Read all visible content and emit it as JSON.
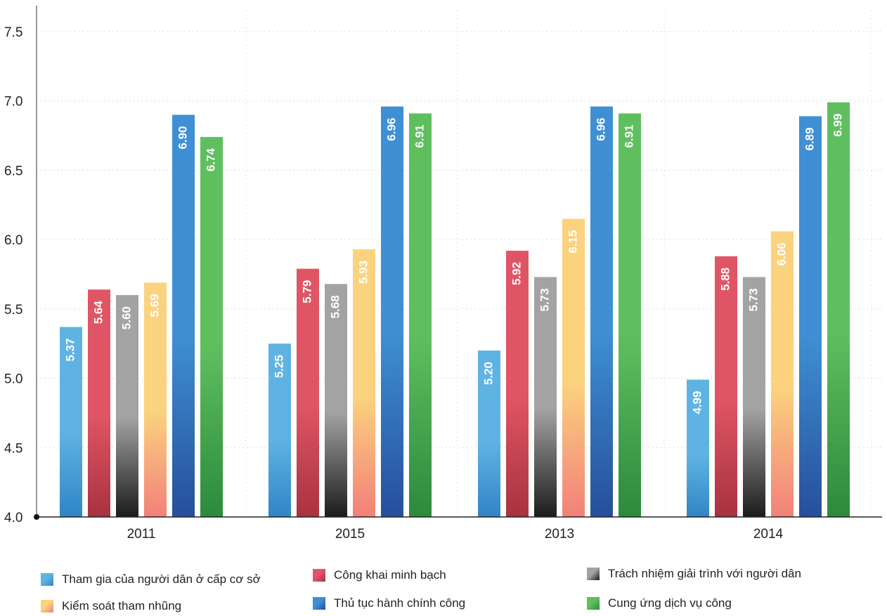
{
  "chart_data": {
    "type": "bar",
    "categories": [
      "2011",
      "2015",
      "2013",
      "2014"
    ],
    "series": [
      {
        "name": "Tham gia của người dân ở cấp cơ sở",
        "values": [
          5.37,
          5.25,
          5.2,
          4.99
        ],
        "labels": [
          "5.37",
          "5.25",
          "5.20",
          "4.99"
        ],
        "color": "#5fb3e3",
        "color_dark": "#2f86c4"
      },
      {
        "name": "Công khai minh bạch",
        "values": [
          5.64,
          5.79,
          5.92,
          5.88
        ],
        "labels": [
          "5.64",
          "5.79",
          "5.92",
          "5.88"
        ],
        "color": "#e05565",
        "color_dark": "#a8323f"
      },
      {
        "name": "Trách nhiệm giải trình với người dân",
        "values": [
          5.6,
          5.68,
          5.73,
          5.73
        ],
        "labels": [
          "5.60",
          "5.68",
          "5.73",
          "5.73"
        ],
        "color": "#a3a3a3",
        "color_dark": "#1c1c1c"
      },
      {
        "name": "Kiểm soát tham nhũng",
        "values": [
          5.69,
          5.93,
          6.15,
          6.06
        ],
        "labels": [
          "5.69",
          "5.93",
          "6.15",
          "6.06"
        ],
        "color": "#fbd27e",
        "color_dark": "#f2807a"
      },
      {
        "name": "Thủ tục hành chính công",
        "values": [
          6.9,
          6.96,
          6.96,
          6.89
        ],
        "labels": [
          "6.90",
          "6.96",
          "6.96",
          "6.89"
        ],
        "color": "#3f8fd4",
        "color_dark": "#264f9a"
      },
      {
        "name": "Cung ứng dịch vụ công",
        "values": [
          6.74,
          6.91,
          6.91,
          6.99
        ],
        "labels": [
          "6.74",
          "6.91",
          "6.91",
          "6.99"
        ],
        "color": "#5fbf5f",
        "color_dark": "#2c8a3c"
      }
    ],
    "yticks": [
      "4.0",
      "4.5",
      "5.0",
      "5.5",
      "6.0",
      "6.5",
      "7.0",
      "7.5"
    ],
    "ylim": [
      4.0,
      7.5
    ],
    "grid": true,
    "legend_position": "bottom"
  }
}
